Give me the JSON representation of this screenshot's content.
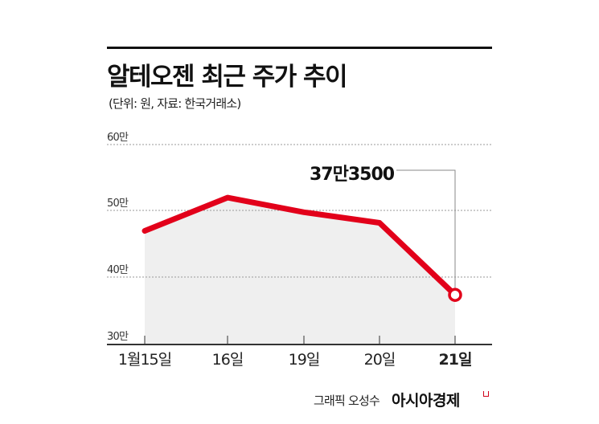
{
  "header": {
    "title": "알테오젠 최근 주가 추이",
    "subtitle": "(단위: 원, 자료: 한국거래소)"
  },
  "callout": {
    "label": "37만3500"
  },
  "footer": {
    "credit": "그래픽 오성수",
    "brand": "아시아경제"
  },
  "colors": {
    "line": "#e2001a",
    "fill": "#efefef",
    "grid": "#9a9a9a",
    "axis": "#333333",
    "leader": "#888888"
  },
  "yaxis": {
    "ticks": [
      {
        "label": "60만",
        "value": 600000
      },
      {
        "label": "50만",
        "value": 500000
      },
      {
        "label": "40만",
        "value": 400000
      },
      {
        "label": "30만",
        "value": 300000
      }
    ]
  },
  "xaxis": {
    "ticks": [
      "1월15일",
      "16일",
      "19일",
      "20일",
      "21일"
    ]
  },
  "chart_data": {
    "type": "area",
    "title": "알테오젠 최근 주가 추이",
    "subtitle": "(단위: 원, 자료: 한국거래소)",
    "xlabel": "",
    "ylabel": "원",
    "categories": [
      "1월15일",
      "16일",
      "19일",
      "20일",
      "21일"
    ],
    "series": [
      {
        "name": "알테오젠 주가",
        "values": [
          470000,
          520000,
          498000,
          482000,
          373500
        ]
      }
    ],
    "annotations": [
      {
        "x": "21일",
        "label": "37만3500"
      }
    ],
    "ylim": [
      300000,
      600000
    ],
    "yticks": [
      "30만",
      "40만",
      "50만",
      "60만"
    ],
    "grid": "horizontal dotted",
    "legend": "none"
  }
}
